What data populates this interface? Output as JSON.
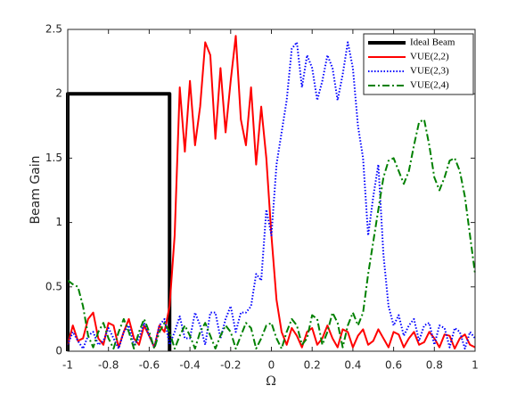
{
  "chart_data": {
    "type": "line",
    "xlabel": "Ω",
    "ylabel": "Beam Gain",
    "xlim": [
      -1,
      1
    ],
    "ylim": [
      0,
      2.5
    ],
    "xticks": [
      -1,
      -0.8,
      -0.6,
      -0.4,
      -0.2,
      0,
      0.2,
      0.4,
      0.6,
      0.8,
      1
    ],
    "yticks": [
      0,
      0.5,
      1,
      1.5,
      2,
      2.5
    ],
    "grid": false,
    "legend": "upper right",
    "series": [
      {
        "name": "Ideal Beam",
        "color": "#000000",
        "style": "solid",
        "x": [
          -1,
          -1,
          -0.5,
          -0.5
        ],
        "values": [
          0,
          2,
          2,
          0
        ]
      },
      {
        "name": "VUE(2,2)",
        "color": "#ff0000",
        "style": "solid",
        "x": [
          -1,
          -0.975,
          -0.95,
          -0.925,
          -0.9,
          -0.875,
          -0.85,
          -0.825,
          -0.8,
          -0.775,
          -0.75,
          -0.725,
          -0.7,
          -0.675,
          -0.65,
          -0.625,
          -0.6,
          -0.575,
          -0.55,
          -0.525,
          -0.5,
          -0.475,
          -0.45,
          -0.425,
          -0.4,
          -0.375,
          -0.35,
          -0.325,
          -0.3,
          -0.275,
          -0.25,
          -0.225,
          -0.2,
          -0.175,
          -0.15,
          -0.125,
          -0.1,
          -0.075,
          -0.05,
          -0.025,
          0,
          0.025,
          0.05,
          0.075,
          0.1,
          0.125,
          0.15,
          0.175,
          0.2,
          0.225,
          0.25,
          0.275,
          0.3,
          0.325,
          0.35,
          0.375,
          0.4,
          0.425,
          0.45,
          0.475,
          0.5,
          0.525,
          0.55,
          0.575,
          0.6,
          0.625,
          0.65,
          0.675,
          0.7,
          0.725,
          0.75,
          0.775,
          0.8,
          0.825,
          0.85,
          0.875,
          0.9,
          0.925,
          0.95,
          0.975,
          1
        ],
        "values": [
          0.05,
          0.2,
          0.08,
          0.1,
          0.25,
          0.3,
          0.1,
          0.05,
          0.22,
          0.2,
          0.03,
          0.15,
          0.25,
          0.1,
          0.05,
          0.2,
          0.12,
          0.03,
          0.2,
          0.15,
          0.35,
          0.9,
          2.05,
          1.55,
          2.1,
          1.6,
          1.9,
          2.4,
          2.3,
          1.65,
          2.2,
          1.7,
          2.1,
          2.45,
          1.8,
          1.6,
          2.05,
          1.45,
          1.9,
          1.5,
          0.9,
          0.4,
          0.15,
          0.05,
          0.18,
          0.12,
          0.03,
          0.15,
          0.18,
          0.05,
          0.1,
          0.2,
          0.1,
          0.03,
          0.17,
          0.15,
          0.03,
          0.12,
          0.17,
          0.05,
          0.08,
          0.17,
          0.1,
          0.03,
          0.15,
          0.13,
          0.03,
          0.1,
          0.15,
          0.05,
          0.07,
          0.15,
          0.1,
          0.03,
          0.13,
          0.12,
          0.02,
          0.1,
          0.13,
          0.05,
          0.03
        ]
      },
      {
        "name": "VUE(2,3)",
        "color": "#0000ff",
        "style": "dotted",
        "x": [
          -1,
          -0.975,
          -0.95,
          -0.925,
          -0.9,
          -0.875,
          -0.85,
          -0.825,
          -0.8,
          -0.775,
          -0.75,
          -0.725,
          -0.7,
          -0.675,
          -0.65,
          -0.625,
          -0.6,
          -0.575,
          -0.55,
          -0.525,
          -0.5,
          -0.475,
          -0.45,
          -0.425,
          -0.4,
          -0.375,
          -0.35,
          -0.325,
          -0.3,
          -0.275,
          -0.25,
          -0.225,
          -0.2,
          -0.175,
          -0.15,
          -0.125,
          -0.1,
          -0.075,
          -0.05,
          -0.025,
          0,
          0.025,
          0.05,
          0.075,
          0.1,
          0.125,
          0.15,
          0.175,
          0.2,
          0.225,
          0.25,
          0.275,
          0.3,
          0.325,
          0.35,
          0.375,
          0.4,
          0.425,
          0.45,
          0.475,
          0.5,
          0.525,
          0.55,
          0.575,
          0.6,
          0.625,
          0.65,
          0.675,
          0.7,
          0.725,
          0.75,
          0.775,
          0.8,
          0.825,
          0.85,
          0.875,
          0.9,
          0.925,
          0.95,
          0.975,
          1
        ],
        "values": [
          0.05,
          0.15,
          0.08,
          0.02,
          0.12,
          0.15,
          0.05,
          0.08,
          0.18,
          0.1,
          0.02,
          0.15,
          0.2,
          0.05,
          0.1,
          0.22,
          0.12,
          0.03,
          0.2,
          0.25,
          0.05,
          0.15,
          0.27,
          0.1,
          0.1,
          0.3,
          0.2,
          0.05,
          0.3,
          0.3,
          0.1,
          0.25,
          0.35,
          0.15,
          0.3,
          0.3,
          0.35,
          0.6,
          0.55,
          1.1,
          0.9,
          1.45,
          1.7,
          1.95,
          2.35,
          2.4,
          2.05,
          2.3,
          2.2,
          1.95,
          2.1,
          2.3,
          2.2,
          1.95,
          2.15,
          2.4,
          2.2,
          1.75,
          1.5,
          0.9,
          1.2,
          1.45,
          0.75,
          0.35,
          0.2,
          0.28,
          0.12,
          0.2,
          0.25,
          0.08,
          0.2,
          0.22,
          0.05,
          0.2,
          0.18,
          0.03,
          0.18,
          0.15,
          0.02,
          0.15,
          0.1
        ]
      },
      {
        "name": "VUE(2,4)",
        "color": "#008000",
        "style": "dashdot",
        "x": [
          -1,
          -0.975,
          -0.95,
          -0.925,
          -0.9,
          -0.875,
          -0.85,
          -0.825,
          -0.8,
          -0.775,
          -0.75,
          -0.725,
          -0.7,
          -0.675,
          -0.65,
          -0.625,
          -0.6,
          -0.575,
          -0.55,
          -0.525,
          -0.5,
          -0.475,
          -0.45,
          -0.425,
          -0.4,
          -0.375,
          -0.35,
          -0.325,
          -0.3,
          -0.275,
          -0.25,
          -0.225,
          -0.2,
          -0.175,
          -0.15,
          -0.125,
          -0.1,
          -0.075,
          -0.05,
          -0.025,
          0,
          0.025,
          0.05,
          0.075,
          0.1,
          0.125,
          0.15,
          0.175,
          0.2,
          0.225,
          0.25,
          0.275,
          0.3,
          0.325,
          0.35,
          0.375,
          0.4,
          0.425,
          0.45,
          0.475,
          0.5,
          0.525,
          0.55,
          0.575,
          0.6,
          0.625,
          0.65,
          0.675,
          0.7,
          0.725,
          0.75,
          0.775,
          0.8,
          0.825,
          0.85,
          0.875,
          0.9,
          0.925,
          0.95,
          0.975,
          1
        ],
        "values": [
          0.55,
          0.52,
          0.5,
          0.35,
          0.12,
          0.03,
          0.15,
          0.22,
          0.1,
          0.02,
          0.15,
          0.25,
          0.15,
          0.02,
          0.15,
          0.25,
          0.15,
          0.02,
          0.15,
          0.22,
          0.15,
          0.02,
          0.12,
          0.2,
          0.12,
          0.02,
          0.15,
          0.22,
          0.12,
          0.02,
          0.12,
          0.2,
          0.15,
          0.02,
          0.12,
          0.22,
          0.18,
          0.02,
          0.1,
          0.2,
          0.22,
          0.1,
          0.02,
          0.15,
          0.25,
          0.2,
          0.05,
          0.1,
          0.28,
          0.25,
          0.05,
          0.15,
          0.3,
          0.22,
          0.03,
          0.2,
          0.3,
          0.2,
          0.3,
          0.6,
          0.85,
          1.1,
          1.35,
          1.48,
          1.5,
          1.4,
          1.3,
          1.4,
          1.6,
          1.78,
          1.8,
          1.6,
          1.35,
          1.25,
          1.35,
          1.48,
          1.5,
          1.4,
          1.2,
          0.9,
          0.6
        ]
      }
    ]
  }
}
